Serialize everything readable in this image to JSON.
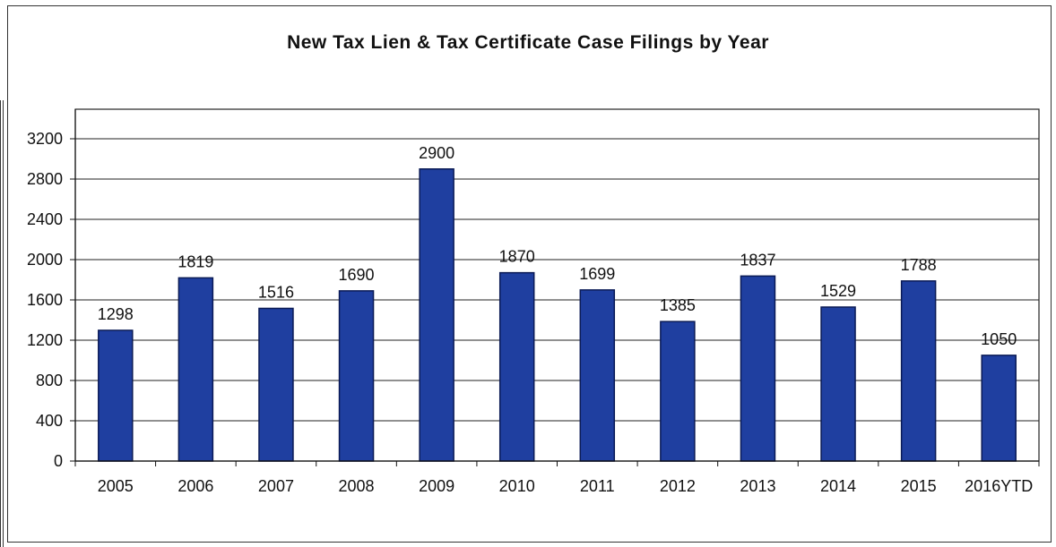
{
  "chart_data": {
    "type": "bar",
    "title": "New Tax Lien & Tax Certificate Case Filings by Year",
    "xlabel": "",
    "ylabel": "",
    "categories": [
      "2005",
      "2006",
      "2007",
      "2008",
      "2009",
      "2010",
      "2011",
      "2012",
      "2013",
      "2014",
      "2015",
      "2016YTD"
    ],
    "values": [
      1298,
      1819,
      1516,
      1690,
      2900,
      1870,
      1699,
      1385,
      1837,
      1529,
      1788,
      1050
    ],
    "ylim": [
      0,
      3200
    ],
    "yticks": [
      0,
      400,
      800,
      1200,
      1600,
      2000,
      2400,
      2800,
      3200
    ],
    "grid": true,
    "data_labels": true,
    "bar_color": "#1f3fa0",
    "bar_edge_color": "#0a1a55"
  }
}
